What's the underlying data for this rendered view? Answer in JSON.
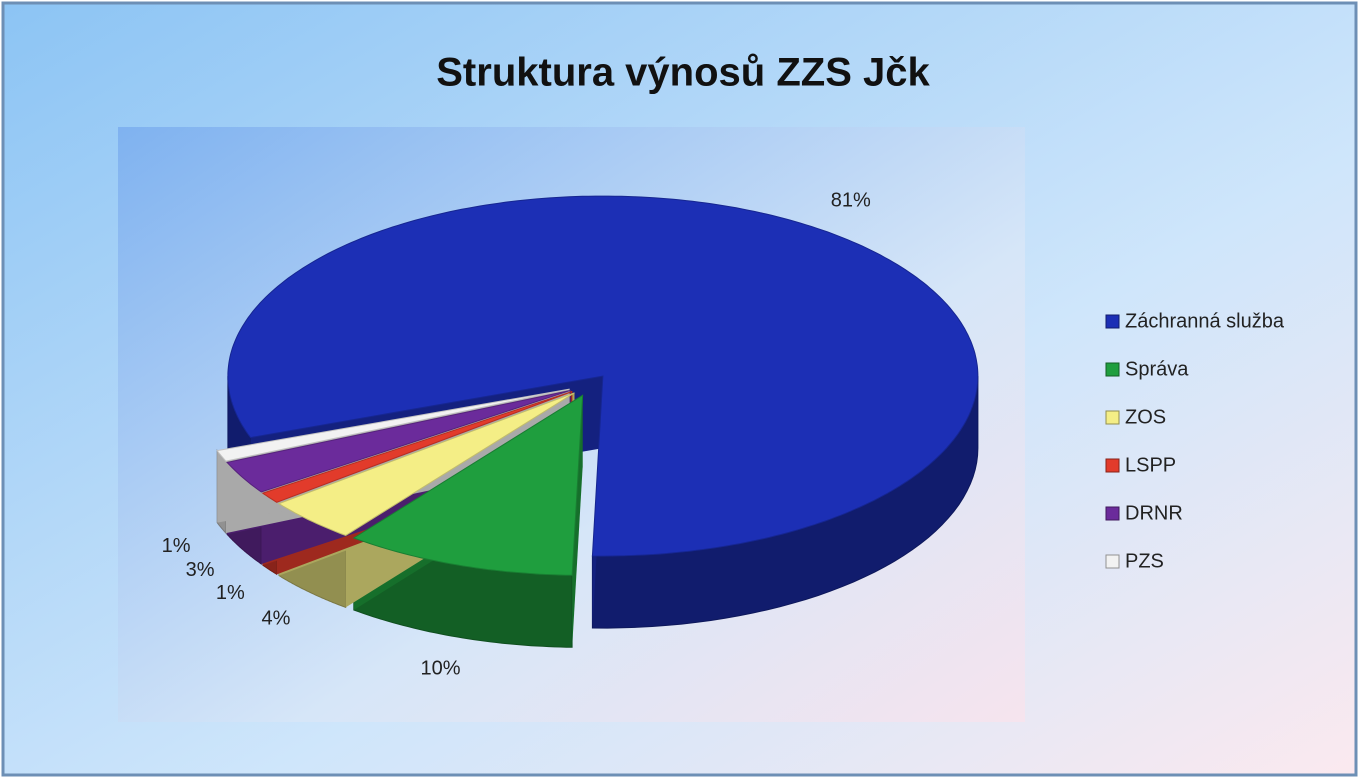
{
  "chart_data": {
    "type": "pie",
    "title": "Struktura výnosů ZZS Jčk",
    "categories": [
      "Záchranná služba",
      "Správa",
      "ZOS",
      "LSPP",
      "DRNR",
      "PZS"
    ],
    "values": [
      81,
      10,
      4,
      1,
      3,
      1
    ],
    "value_labels": [
      "81%",
      "10%",
      "4%",
      "1%",
      "3%",
      "1%"
    ],
    "colors": [
      "#1c2fb5",
      "#1f9e3e",
      "#f4ee86",
      "#e23b2b",
      "#6b2b9b",
      "#f2f2f2"
    ],
    "legend": "right"
  }
}
